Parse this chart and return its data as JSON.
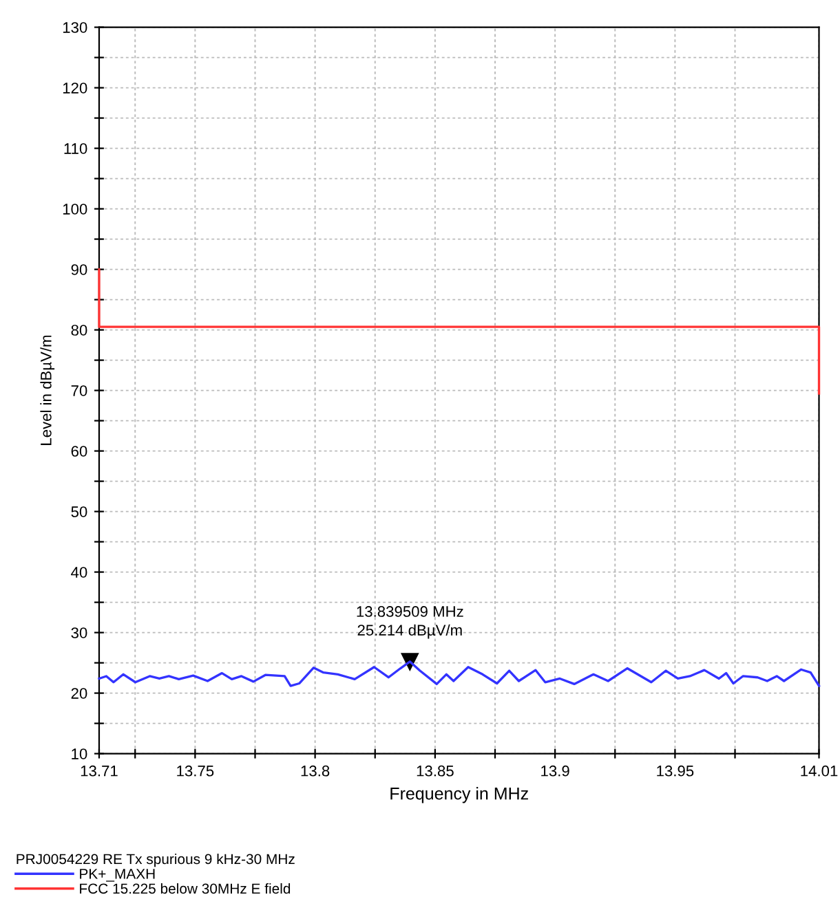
{
  "chart_data": {
    "type": "line",
    "xlabel": "Frequency in MHz",
    "ylabel": "Level in dBµV/m",
    "legend_title": "PRJ0054229 RE Tx spurious 9 kHz-30 MHz",
    "xlim": [
      13.71,
      14.01
    ],
    "ylim": [
      10,
      130
    ],
    "xticks": [
      13.71,
      {
        "value": 13.725,
        "label": null
      },
      13.75,
      {
        "value": 13.775,
        "label": null
      },
      13.8,
      {
        "value": 13.825,
        "label": null
      },
      13.85,
      {
        "value": 13.875,
        "label": null
      },
      13.9,
      {
        "value": 13.925,
        "label": null
      },
      13.95,
      {
        "value": 13.975,
        "label": null
      },
      14.01
    ],
    "yticks": [
      10,
      {
        "value": 15,
        "label": null
      },
      20,
      {
        "value": 25,
        "label": null
      },
      30,
      {
        "value": 35,
        "label": null
      },
      40,
      {
        "value": 45,
        "label": null
      },
      50,
      {
        "value": 55,
        "label": null
      },
      60,
      {
        "value": 65,
        "label": null
      },
      70,
      {
        "value": 75,
        "label": null
      },
      80,
      {
        "value": 85,
        "label": null
      },
      90,
      {
        "value": 95,
        "label": null
      },
      100,
      {
        "value": 105,
        "label": null
      },
      110,
      {
        "value": 115,
        "label": null
      },
      120,
      {
        "value": 125,
        "label": null
      },
      130
    ],
    "grid": true,
    "legend": "bottom left",
    "line_style": "solid",
    "marker": "none",
    "annotations": [
      {
        "text": "13.839509 MHz\n25.214 dBµV/m",
        "x": 13.839509,
        "y": 25.214
      }
    ],
    "series": [
      {
        "name": "PK+_MAXH",
        "color": "#3333ff",
        "x": [
          13.71,
          13.713,
          13.716,
          13.7201,
          13.7251,
          13.7311,
          13.7351,
          13.7391,
          13.7432,
          13.7492,
          13.7552,
          13.7612,
          13.7653,
          13.7693,
          13.7743,
          13.7793,
          13.7873,
          13.7898,
          13.7934,
          13.7994,
          13.8035,
          13.8095,
          13.8165,
          13.8246,
          13.8306,
          13.8356,
          13.8395,
          13.8437,
          13.8507,
          13.8547,
          13.8577,
          13.8638,
          13.8698,
          13.8758,
          13.8809,
          13.8849,
          13.8919,
          13.8959,
          13.902,
          13.908,
          13.916,
          13.9221,
          13.9301,
          13.9401,
          13.9462,
          13.9512,
          13.9562,
          13.9622,
          13.9683,
          13.9713,
          13.9743,
          13.9783,
          13.9844,
          13.9884,
          13.9924,
          13.9954,
          14.0025,
          14.0065,
          14.01
        ],
        "values": [
          22.4,
          22.8,
          21.8,
          23.1,
          21.8,
          22.8,
          22.4,
          22.8,
          22.3,
          22.9,
          22.0,
          23.3,
          22.3,
          22.8,
          21.9,
          23.0,
          22.8,
          21.2,
          21.6,
          24.2,
          23.4,
          23.1,
          22.3,
          24.3,
          22.6,
          24.1,
          25.2,
          23.7,
          21.5,
          23.1,
          22.0,
          24.3,
          23.1,
          21.6,
          23.7,
          22.0,
          23.8,
          21.8,
          22.4,
          21.5,
          23.1,
          22.0,
          24.1,
          21.8,
          23.7,
          22.4,
          22.8,
          23.8,
          22.4,
          23.3,
          21.6,
          22.8,
          22.6,
          22.0,
          22.8,
          22.0,
          23.9,
          23.4,
          21.2
        ]
      },
      {
        "name": "FCC 15.225 below 30MHz E field",
        "color": "#ff3333",
        "x": [
          13.71,
          13.71,
          14.01,
          14.01
        ],
        "values": [
          90,
          80.5,
          80.5,
          69.5
        ]
      }
    ]
  }
}
